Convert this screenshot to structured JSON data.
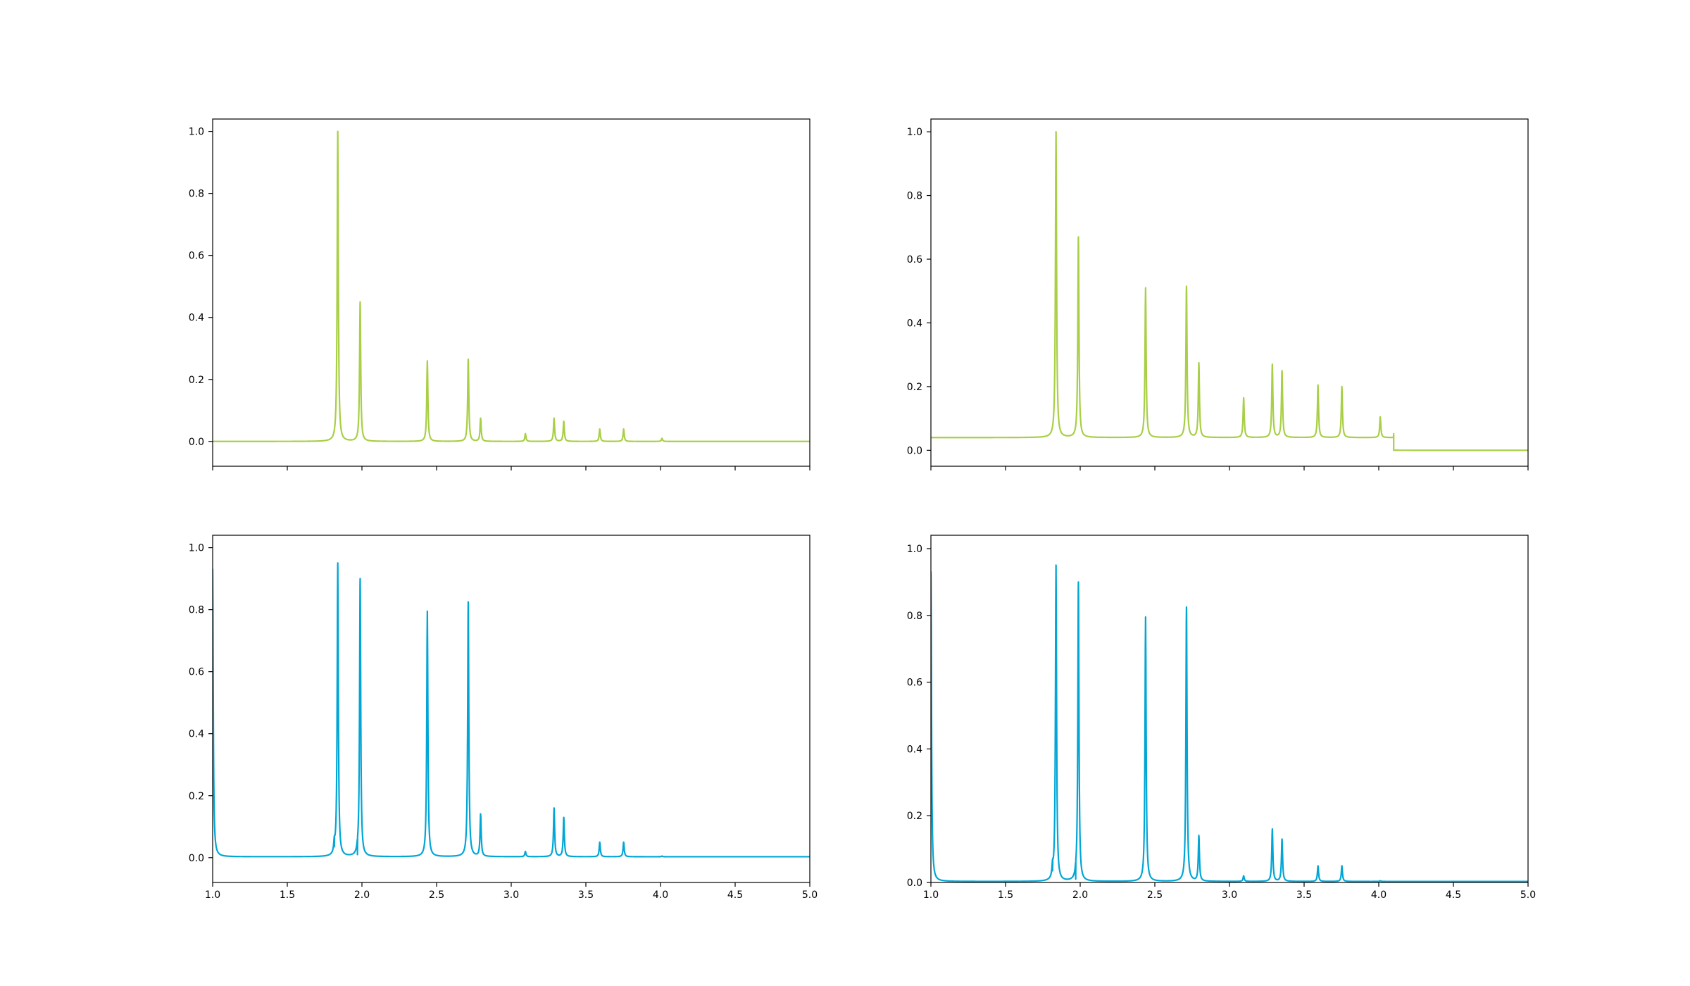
{
  "colors": {
    "green": "#a8cf45",
    "blue": "#00a6d6"
  },
  "chart_data": [
    {
      "type": "line",
      "panel": "top-left",
      "xlim": [
        1.0,
        5.0
      ],
      "ylim": [
        -0.08,
        1.04
      ],
      "xticks": [
        1.0,
        1.5,
        2.0,
        2.5,
        3.0,
        3.5,
        4.0,
        4.5,
        5.0
      ],
      "xtick_labels": [],
      "yticks": [
        0.0,
        0.2,
        0.4,
        0.6,
        0.8,
        1.0
      ],
      "ytick_labels": [
        "0.0",
        "0.2",
        "0.4",
        "0.6",
        "0.8",
        "1.0"
      ],
      "series": [
        {
          "color": "#a8cf45",
          "baseline_segments": [
            [
              1.0,
              4.1,
              0.0
            ],
            [
              4.1,
              5.0,
              0.0
            ]
          ],
          "peaks": [
            [
              1.838,
              1.0
            ],
            [
              1.988,
              0.45
            ],
            [
              2.438,
              0.26
            ],
            [
              2.712,
              0.265
            ],
            [
              2.795,
              0.075
            ],
            [
              3.095,
              0.025
            ],
            [
              3.287,
              0.075
            ],
            [
              3.352,
              0.065
            ],
            [
              3.593,
              0.04
            ],
            [
              3.753,
              0.04
            ],
            [
              4.01,
              0.01
            ]
          ]
        }
      ]
    },
    {
      "type": "line",
      "panel": "top-right",
      "xlim": [
        1.0,
        5.0
      ],
      "ylim": [
        -0.05,
        1.04
      ],
      "xticks": [
        1.0,
        1.5,
        2.0,
        2.5,
        3.0,
        3.5,
        4.0,
        4.5,
        5.0
      ],
      "xtick_labels": [],
      "yticks": [
        0.0,
        0.2,
        0.4,
        0.6,
        0.8,
        1.0
      ],
      "ytick_labels": [
        "0.0",
        "0.2",
        "0.4",
        "0.6",
        "0.8",
        "1.0"
      ],
      "series": [
        {
          "color": "#a8cf45",
          "baseline_segments": [
            [
              1.0,
              4.1,
              0.04
            ],
            [
              4.1,
              5.0,
              0.0
            ]
          ],
          "peaks": [
            [
              1.838,
              1.0
            ],
            [
              1.988,
              0.67
            ],
            [
              2.438,
              0.51
            ],
            [
              2.712,
              0.515
            ],
            [
              2.795,
              0.275
            ],
            [
              3.095,
              0.165
            ],
            [
              3.287,
              0.27
            ],
            [
              3.352,
              0.25
            ],
            [
              3.593,
              0.205
            ],
            [
              3.753,
              0.2
            ],
            [
              4.01,
              0.105
            ]
          ]
        }
      ]
    },
    {
      "type": "line",
      "panel": "bottom-left",
      "xlim": [
        1.0,
        5.0
      ],
      "ylim": [
        -0.08,
        1.04
      ],
      "xticks": [
        1.0,
        1.5,
        2.0,
        2.5,
        3.0,
        3.5,
        4.0,
        4.5,
        5.0
      ],
      "xtick_labels": [
        "1.0",
        "1.5",
        "2.0",
        "2.5",
        "3.0",
        "3.5",
        "4.0",
        "4.5",
        "5.0"
      ],
      "yticks": [
        0.0,
        0.2,
        0.4,
        0.6,
        0.8,
        1.0
      ],
      "ytick_labels": [
        "0.0",
        "0.2",
        "0.4",
        "0.6",
        "0.8",
        "1.0"
      ],
      "series": [
        {
          "color": "#00a6d6",
          "baseline_segments": [
            [
              1.0,
              5.0,
              0.003
            ]
          ],
          "peaks": [
            [
              1.0,
              0.93
            ],
            [
              1.815,
              0.035
            ],
            [
              1.838,
              0.95
            ],
            [
              1.97,
              0.01
            ],
            [
              1.988,
              0.9
            ],
            [
              2.438,
              0.795
            ],
            [
              2.712,
              0.825
            ],
            [
              2.795,
              0.14
            ],
            [
              3.095,
              0.02
            ],
            [
              3.287,
              0.16
            ],
            [
              3.352,
              0.13
            ],
            [
              3.593,
              0.05
            ],
            [
              3.753,
              0.05
            ],
            [
              4.01,
              0.005
            ]
          ]
        }
      ]
    },
    {
      "type": "line",
      "panel": "bottom-right",
      "xlim": [
        1.0,
        5.0
      ],
      "ylim": [
        0.0,
        1.04
      ],
      "xticks": [
        1.0,
        1.5,
        2.0,
        2.5,
        3.0,
        3.5,
        4.0,
        4.5,
        5.0
      ],
      "xtick_labels": [
        "1.0",
        "1.5",
        "2.0",
        "2.5",
        "3.0",
        "3.5",
        "4.0",
        "4.5",
        "5.0"
      ],
      "yticks": [
        0.0,
        0.2,
        0.4,
        0.6,
        0.8,
        1.0
      ],
      "ytick_labels": [
        "0.0",
        "0.2",
        "0.4",
        "0.6",
        "0.8",
        "1.0"
      ],
      "series": [
        {
          "color": "#00a6d6",
          "baseline_segments": [
            [
              1.0,
              5.0,
              0.003
            ]
          ],
          "peaks": [
            [
              1.0,
              0.93
            ],
            [
              1.815,
              0.035
            ],
            [
              1.838,
              0.95
            ],
            [
              1.97,
              0.01
            ],
            [
              1.988,
              0.9
            ],
            [
              2.438,
              0.795
            ],
            [
              2.712,
              0.825
            ],
            [
              2.795,
              0.14
            ],
            [
              3.095,
              0.02
            ],
            [
              3.287,
              0.16
            ],
            [
              3.352,
              0.13
            ],
            [
              3.593,
              0.05
            ],
            [
              3.753,
              0.05
            ],
            [
              4.01,
              0.005
            ]
          ]
        }
      ]
    }
  ]
}
